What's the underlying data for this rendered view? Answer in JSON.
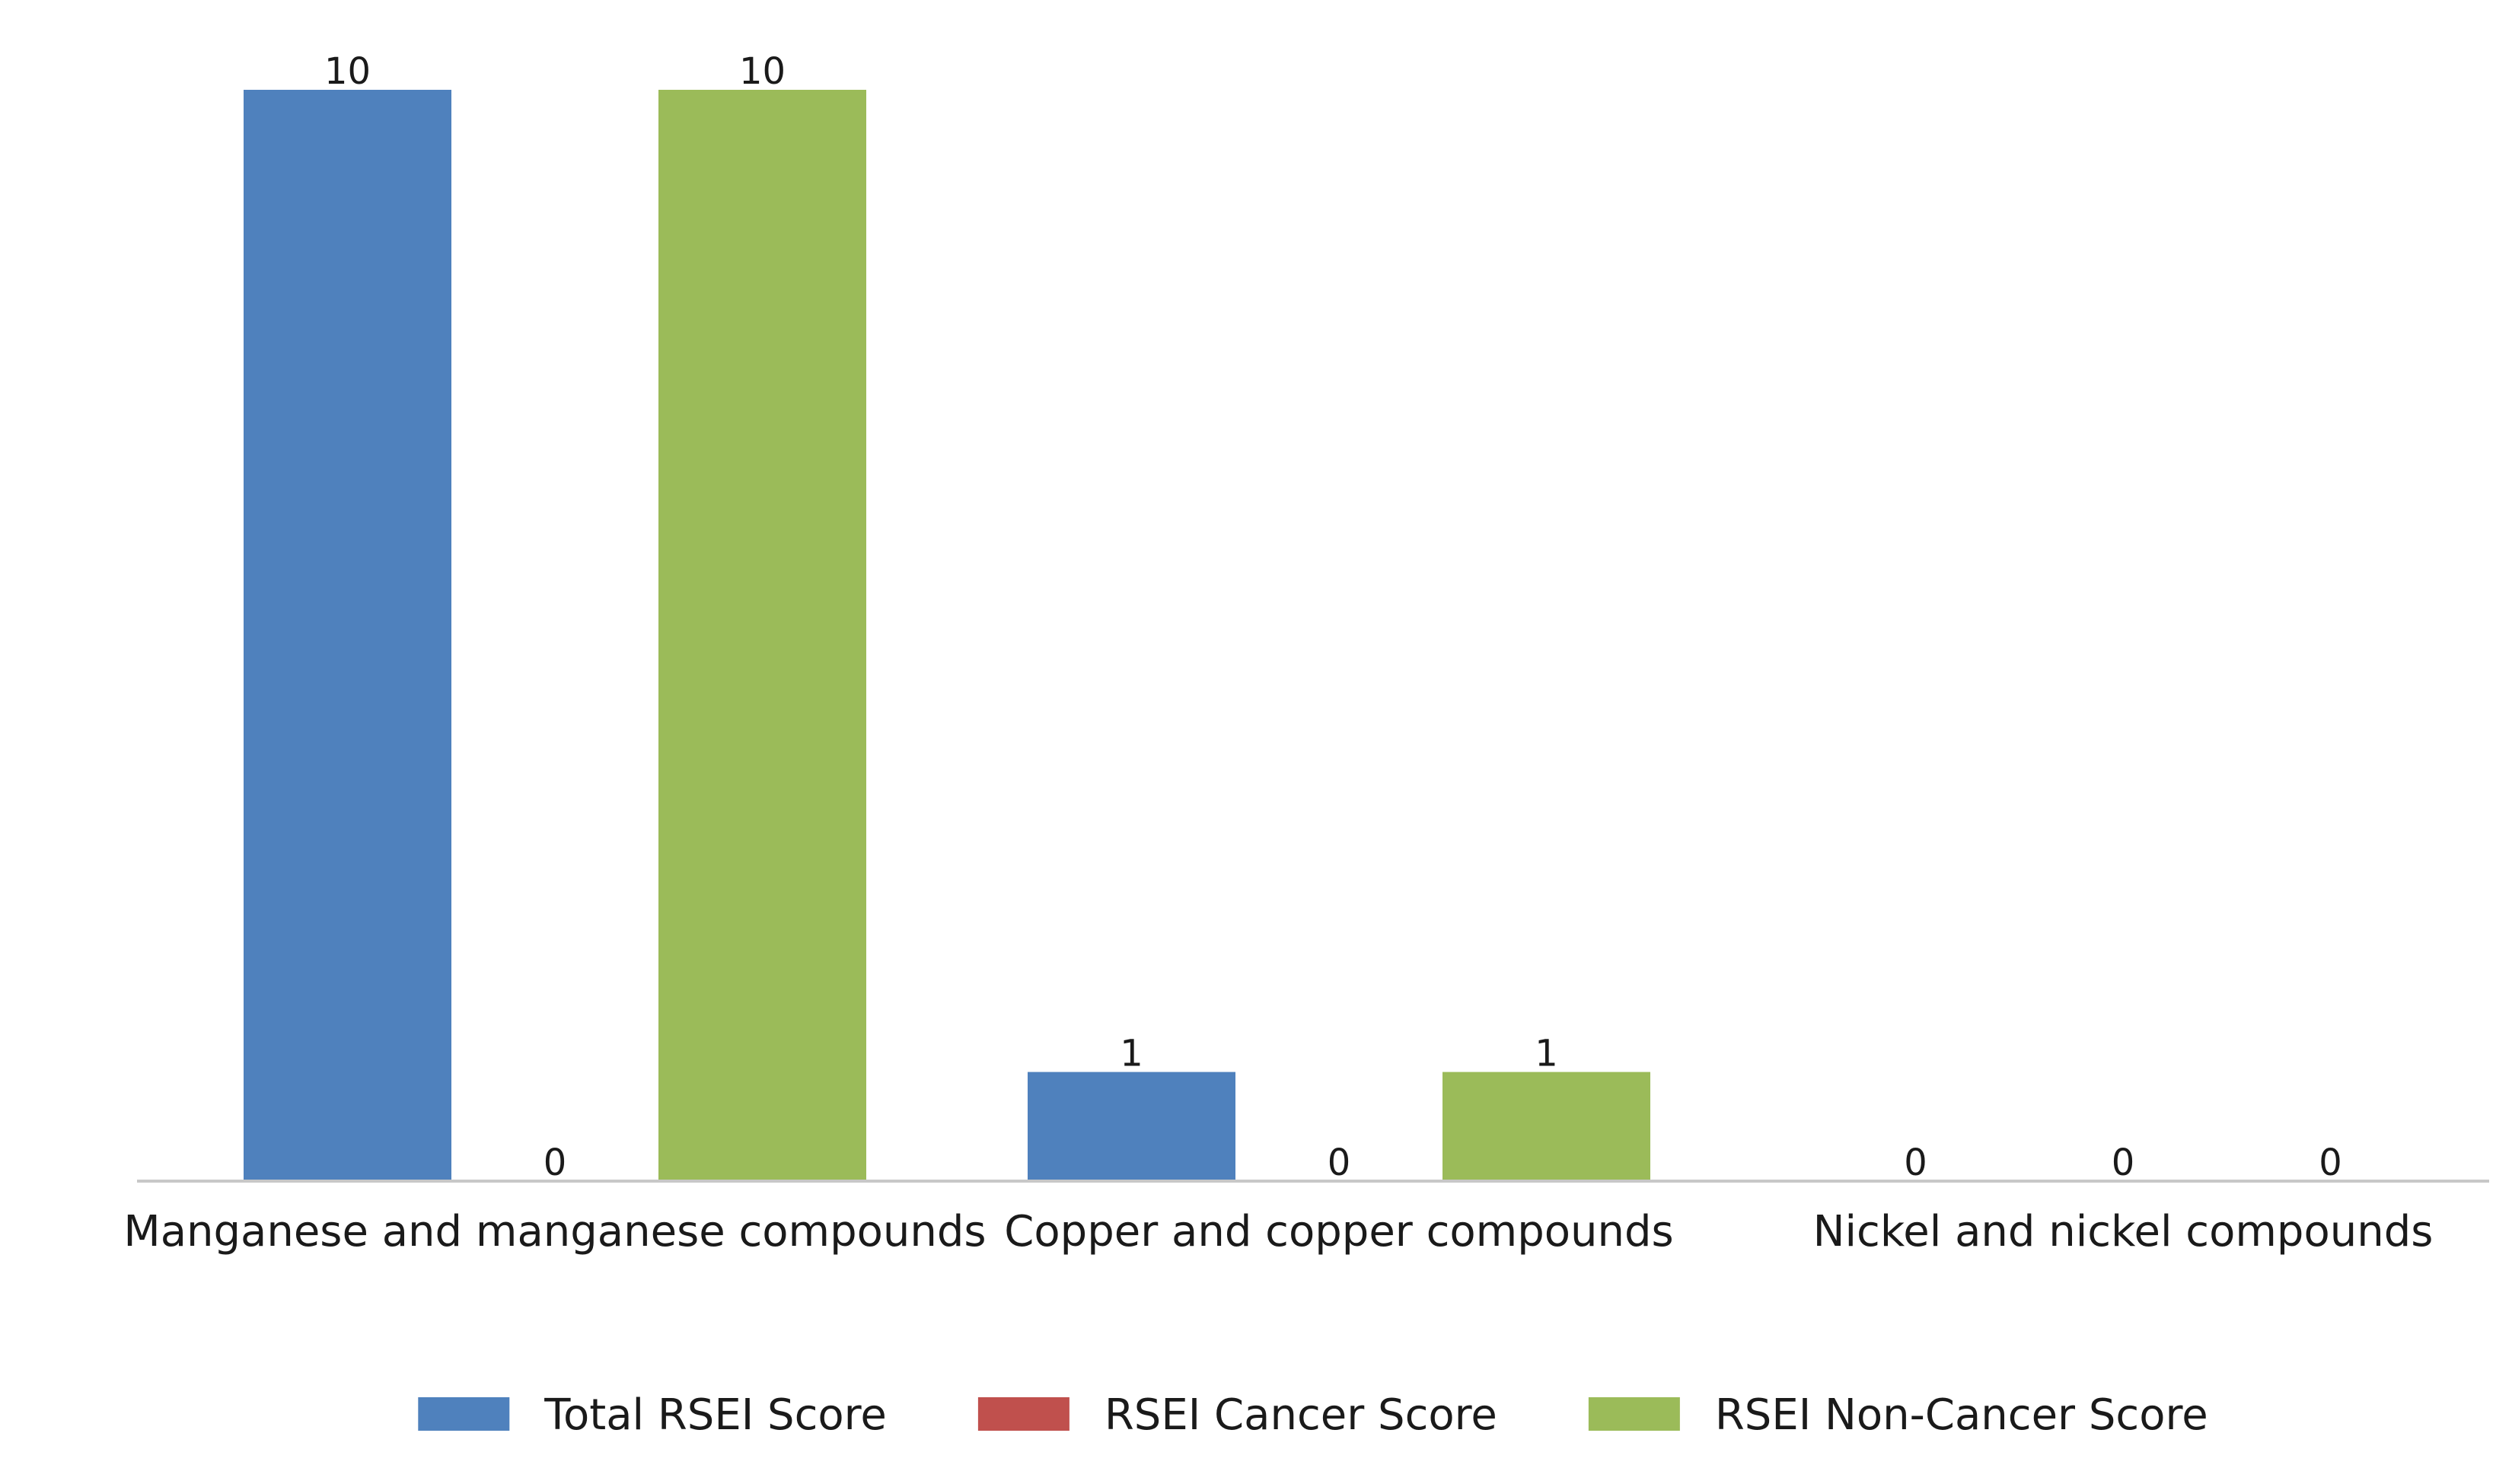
{
  "chart_data": {
    "type": "bar",
    "categories": [
      "Manganese and manganese compounds",
      "Copper and copper compounds",
      "Nickel and nickel compounds"
    ],
    "series": [
      {
        "name": "Total RSEI Score",
        "values": [
          10,
          1,
          0
        ],
        "color": "#4f81bd"
      },
      {
        "name": "RSEI Cancer Score",
        "values": [
          0,
          0,
          0
        ],
        "color": "#c0504d"
      },
      {
        "name": "RSEI Non-Cancer Score",
        "values": [
          10,
          1,
          0
        ],
        "color": "#9bbb59"
      }
    ],
    "ylim": [
      0,
      10
    ],
    "grid": false,
    "y_axis_visible": false,
    "data_labels": true,
    "legend_position": "bottom"
  }
}
